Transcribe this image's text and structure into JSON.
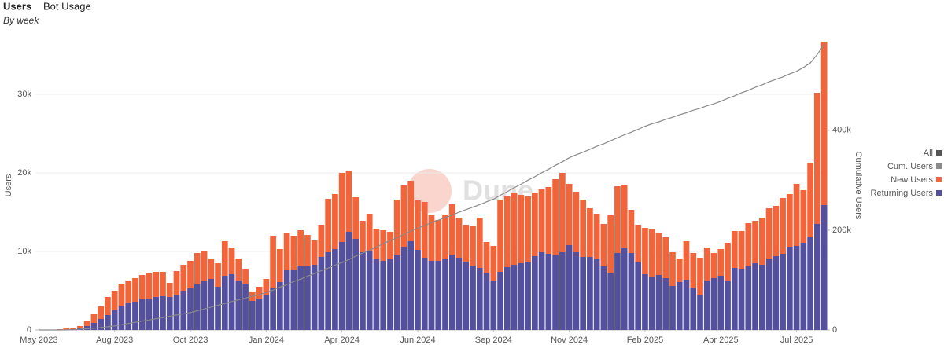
{
  "header": {
    "tabs": [
      "Users",
      "Bot Usage"
    ],
    "subtitle": "By week"
  },
  "chart_data": {
    "type": "bar",
    "stacked": true,
    "ylabel": "Users",
    "y2label": "Cumulative Users",
    "watermark": "Dune",
    "legend_toggle": "All",
    "legend_position": "right",
    "ylim": [
      0,
      37500
    ],
    "yticks": [
      0,
      {
        "value": 10000,
        "label": "10k"
      },
      {
        "value": 20000,
        "label": "20k"
      },
      {
        "value": 30000,
        "label": "30k"
      }
    ],
    "y2lim": [
      0,
      590000
    ],
    "y2ticks": [
      0,
      {
        "value": 200000,
        "label": "200k"
      },
      {
        "value": 400000,
        "label": "400k"
      }
    ],
    "grid": true,
    "categories": [
      "May 2023",
      null,
      null,
      null,
      null,
      null,
      null,
      null,
      null,
      null,
      null,
      "Aug 2023",
      null,
      null,
      null,
      null,
      null,
      null,
      null,
      null,
      null,
      null,
      "Oct 2023",
      null,
      null,
      null,
      null,
      null,
      null,
      null,
      null,
      null,
      null,
      "Jan 2024",
      null,
      null,
      null,
      null,
      null,
      null,
      null,
      null,
      null,
      null,
      "Apr 2024",
      null,
      null,
      null,
      null,
      null,
      null,
      null,
      null,
      null,
      null,
      "Jun 2024",
      null,
      null,
      null,
      null,
      null,
      null,
      null,
      null,
      null,
      null,
      "Sep 2024",
      null,
      null,
      null,
      null,
      null,
      null,
      null,
      null,
      null,
      null,
      "Nov 2024",
      null,
      null,
      null,
      null,
      null,
      null,
      null,
      null,
      null,
      null,
      "Feb 2025",
      null,
      null,
      null,
      null,
      null,
      null,
      null,
      null,
      null,
      null,
      "Apr 2025",
      null,
      null,
      null,
      null,
      null,
      null,
      null,
      null,
      null,
      null,
      "Jul 2025",
      null,
      null,
      null,
      null
    ],
    "series": [
      {
        "name": "Cum. Users",
        "type": "line",
        "axis": "y2",
        "color": "#8a8a8a",
        "values": [
          0,
          0,
          0,
          0,
          200,
          500,
          1500,
          2500,
          3500,
          5000,
          6500,
          8000,
          10500,
          13000,
          15500,
          18000,
          20000,
          22500,
          25000,
          27500,
          30000,
          32500,
          35000,
          38500,
          42000,
          46000,
          49500,
          53000,
          57000,
          60500,
          64000,
          67500,
          71000,
          75000,
          80000,
          86000,
          91000,
          97000,
          102000,
          108000,
          113000,
          119000,
          124000,
          130000,
          135000,
          141000,
          148000,
          154000,
          160000,
          166000,
          173000,
          179000,
          185000,
          192000,
          198000,
          204000,
          209000,
          215000,
          220000,
          225000,
          230000,
          236000,
          241000,
          246000,
          251000,
          257000,
          262000,
          270000,
          277000,
          285000,
          292000,
          300000,
          307000,
          315000,
          322000,
          330000,
          337000,
          345000,
          351000,
          356000,
          362000,
          368000,
          373000,
          379000,
          385000,
          391000,
          396000,
          402000,
          408000,
          413000,
          417000,
          422000,
          426000,
          431000,
          435000,
          440000,
          444000,
          449000,
          453000,
          458000,
          464000,
          469000,
          475000,
          480000,
          486000,
          491000,
          497000,
          502000,
          507000,
          513000,
          518000,
          526000,
          535000,
          552000,
          572000
        ]
      },
      {
        "name": "New Users",
        "type": "bar",
        "color": "#f2643a",
        "values": [
          0,
          0,
          0,
          100,
          150,
          200,
          300,
          700,
          1100,
          1600,
          2300,
          2500,
          2800,
          2900,
          3000,
          3100,
          3200,
          3200,
          3100,
          1800,
          3000,
          3300,
          3500,
          4000,
          3700,
          2600,
          3000,
          4400,
          3400,
          2800,
          2000,
          1200,
          1600,
          2000,
          6600,
          4200,
          4700,
          4300,
          4500,
          3900,
          3100,
          4100,
          6800,
          7000,
          8800,
          7700,
          5300,
          4000,
          4800,
          3900,
          3900,
          3500,
          7100,
          7800,
          7700,
          6300,
          7100,
          5900,
          5200,
          5600,
          6400,
          5100,
          4700,
          5000,
          6400,
          3900,
          4500,
          9200,
          9000,
          9200,
          8700,
          8400,
          8000,
          8000,
          8500,
          9600,
          10100,
          7800,
          7700,
          7300,
          6200,
          5800,
          5400,
          7400,
          8500,
          8000,
          5500,
          4700,
          5900,
          6000,
          5400,
          5200,
          4300,
          3000,
          4900,
          4400,
          4700,
          4200,
          3200,
          3400,
          4900,
          4700,
          4800,
          5400,
          5400,
          6000,
          6400,
          6400,
          7100,
          6700,
          7900,
          6700,
          9400,
          16700,
          20800
        ]
      },
      {
        "name": "Returning Users",
        "type": "bar",
        "color": "#55509e",
        "values": [
          0,
          0,
          0,
          0,
          50,
          100,
          200,
          500,
          900,
          1400,
          1900,
          2500,
          3100,
          3400,
          3600,
          3900,
          4000,
          4200,
          4300,
          4200,
          4500,
          5000,
          5300,
          5800,
          6300,
          6500,
          5500,
          6900,
          7100,
          6300,
          5800,
          3700,
          3900,
          4500,
          5400,
          6100,
          7700,
          7700,
          8200,
          8200,
          8300,
          9300,
          9900,
          10300,
          11200,
          12500,
          11600,
          9900,
          10000,
          9000,
          8800,
          9000,
          9500,
          10600,
          11300,
          10200,
          9200,
          8800,
          8800,
          9100,
          9600,
          9200,
          8700,
          8200,
          7900,
          7300,
          6200,
          7400,
          8000,
          8300,
          8500,
          8600,
          9400,
          9900,
          9700,
          9600,
          9900,
          10800,
          9900,
          9300,
          9300,
          9000,
          8100,
          7200,
          9800,
          10400,
          9800,
          8700,
          7100,
          6800,
          7000,
          6600,
          5600,
          6100,
          6400,
          5400,
          4500,
          6300,
          6600,
          6900,
          6200,
          7900,
          7800,
          8200,
          8500,
          8300,
          9100,
          9400,
          9700,
          10600,
          10700,
          11100,
          11900,
          13500,
          15900
        ]
      }
    ]
  }
}
